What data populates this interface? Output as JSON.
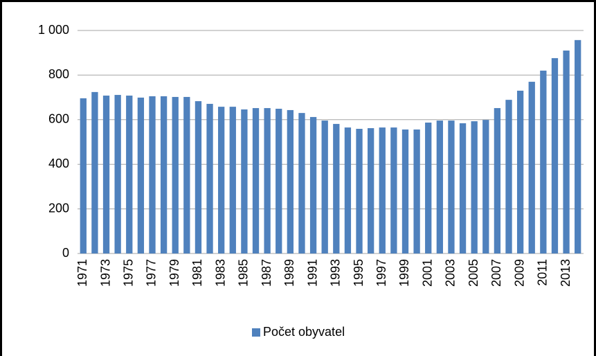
{
  "chart_data": {
    "type": "bar",
    "categories": [
      "1971",
      null,
      "1973",
      null,
      "1975",
      null,
      "1977",
      null,
      "1979",
      null,
      "1981",
      null,
      "1983",
      null,
      "1985",
      null,
      "1987",
      null,
      "1989",
      null,
      "1991",
      null,
      "1993",
      null,
      "1995",
      null,
      "1997",
      null,
      "1999",
      null,
      "2001",
      null,
      "2003",
      null,
      "2005",
      null,
      "2007",
      null,
      "2009",
      null,
      "2011",
      null,
      "2013",
      null
    ],
    "series": [
      {
        "name": "Počet obyvatel",
        "color": "#4f81bd",
        "values": [
          696,
          724,
          708,
          711,
          708,
          699,
          705,
          705,
          702,
          702,
          683,
          671,
          658,
          658,
          646,
          652,
          652,
          649,
          643,
          630,
          612,
          596,
          581,
          565,
          559,
          562,
          565,
          565,
          556,
          556,
          587,
          596,
          596,
          584,
          593,
          599,
          652,
          689,
          730,
          770,
          820,
          876,
          910,
          957
        ]
      }
    ],
    "ylim": [
      0,
      1000
    ],
    "yticks": [
      0,
      200,
      400,
      600,
      800,
      {
        "value": 1000,
        "label": "1 000"
      }
    ],
    "grid": true,
    "legend": "bottom"
  }
}
